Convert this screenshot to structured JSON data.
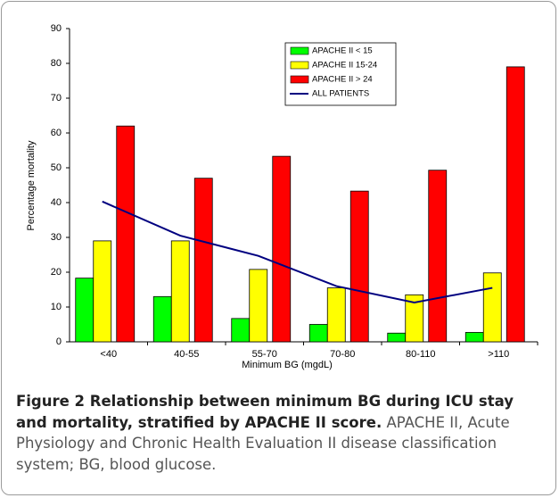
{
  "chart_data": {
    "type": "bar",
    "categories": [
      "<40",
      "40-55",
      "55-70",
      "70-80",
      "80-110",
      ">110"
    ],
    "series": [
      {
        "name": "APACHE II < 15",
        "color": "#00ff00",
        "values": [
          18.3,
          13,
          6.7,
          5,
          2.5,
          2.7
        ]
      },
      {
        "name": "APACHE II 15-24",
        "color": "#ffff00",
        "values": [
          29,
          29,
          20.8,
          15.5,
          13.5,
          19.8
        ]
      },
      {
        "name": "APACHE II > 24",
        "color": "#ff0000",
        "values": [
          62,
          47,
          53.3,
          43.3,
          49.3,
          79
        ]
      },
      {
        "name": "ALL PATIENTS",
        "type": "line",
        "color": "#000080",
        "values": [
          40.3,
          30.5,
          24.7,
          16,
          11.3,
          15.5
        ]
      }
    ],
    "xlabel": "Minimum BG (mgdL)",
    "ylabel": "Percentage mortality",
    "ylim": [
      0,
      90
    ],
    "yticks": [
      0,
      10,
      20,
      30,
      40,
      50,
      60,
      70,
      80,
      90
    ],
    "grid": false,
    "legend": "top"
  },
  "caption": {
    "title": "Figure 2 Relationship between minimum BG during ICU stay and mortality, stratified by APACHE II score.",
    "text": " APACHE II, Acute Physiology and Chronic Health Evaluation II disease classification system; BG, blood glucose."
  }
}
